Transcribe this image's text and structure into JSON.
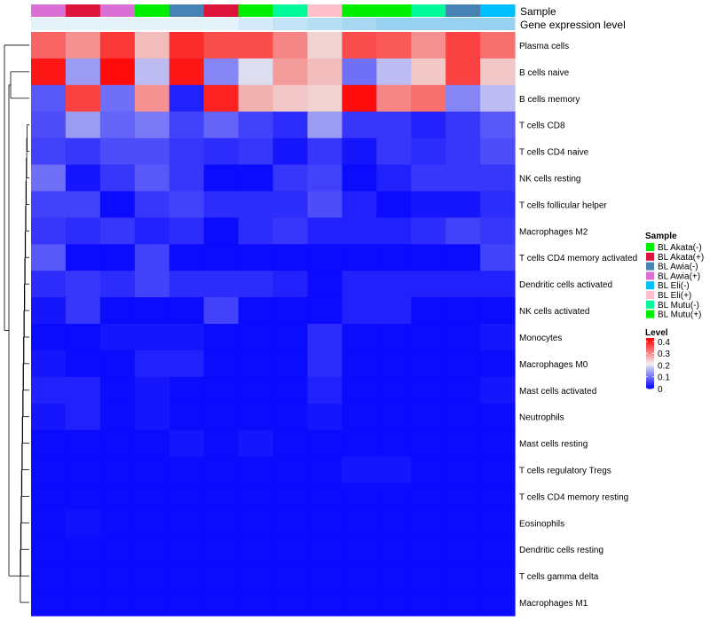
{
  "chart_data": {
    "type": "heatmap",
    "annotation_titles": [
      "Sample",
      "Gene expression level"
    ],
    "sample_colors": [
      "#DA70D6",
      "#DC143C",
      "#DA70D6",
      "#00EE00",
      "#4682B4",
      "#DC143C",
      "#00EE00",
      "#00FA9A",
      "#FFC0CB",
      "#00EE00",
      "#00EE00",
      "#00FA9A",
      "#4682B4",
      "#00BFFF"
    ],
    "gene_expression_colors": [
      "#E6F2FA",
      "#E6F2FA",
      "#E6F2FA",
      "#E6F2FA",
      "#E6F2FA",
      "#E6F2FA",
      "#D4EAF8",
      "#C2E3F6",
      "#B8DEF4",
      "#A8D7F2",
      "#98D0F0",
      "#98D0F0",
      "#98D0F0",
      "#98D0F0"
    ],
    "rows": [
      "Plasma cells",
      "B cells naive",
      "B cells memory",
      "T cells CD8",
      "T cells CD4 naive",
      "NK cells resting",
      "T cells follicular helper",
      "Macrophages M2",
      "T cells CD4 memory activated",
      "Dendritic cells activated",
      "NK cells activated",
      "Monocytes",
      "Macrophages M0",
      "Mast cells activated",
      "Neutrophils",
      "Mast cells resting",
      "T cells regulatory  Tregs",
      "T cells CD4 memory resting",
      "Eosinophils",
      "Dendritic cells resting",
      "T cells gamma delta",
      "Macrophages M1"
    ],
    "values": [
      [
        0.34,
        0.3,
        0.38,
        0.26,
        0.39,
        0.36,
        0.36,
        0.31,
        0.24,
        0.36,
        0.35,
        0.3,
        0.37,
        0.33
      ],
      [
        0.41,
        0.14,
        0.42,
        0.17,
        0.41,
        0.12,
        0.2,
        0.29,
        0.26,
        0.1,
        0.17,
        0.25,
        0.37,
        0.25
      ],
      [
        0.08,
        0.37,
        0.1,
        0.3,
        0.03,
        0.4,
        0.27,
        0.25,
        0.24,
        0.42,
        0.31,
        0.33,
        0.12,
        0.17
      ],
      [
        0.07,
        0.14,
        0.09,
        0.11,
        0.06,
        0.09,
        0.06,
        0.04,
        0.14,
        0.05,
        0.05,
        0.03,
        0.05,
        0.08
      ],
      [
        0.06,
        0.05,
        0.07,
        0.07,
        0.05,
        0.04,
        0.05,
        0.02,
        0.05,
        0.02,
        0.05,
        0.04,
        0.05,
        0.07
      ],
      [
        0.1,
        0.02,
        0.05,
        0.08,
        0.05,
        0.01,
        0.01,
        0.05,
        0.06,
        0.01,
        0.03,
        0.05,
        0.05,
        0.05
      ],
      [
        0.06,
        0.06,
        0.01,
        0.05,
        0.06,
        0.04,
        0.04,
        0.04,
        0.07,
        0.03,
        0.01,
        0.02,
        0.02,
        0.04
      ],
      [
        0.05,
        0.04,
        0.05,
        0.03,
        0.04,
        0.01,
        0.04,
        0.05,
        0.03,
        0.03,
        0.03,
        0.04,
        0.06,
        0.05
      ],
      [
        0.08,
        0.01,
        0.01,
        0.06,
        0.01,
        0.01,
        0.01,
        0.01,
        0.01,
        0.01,
        0.01,
        0.01,
        0.01,
        0.06
      ],
      [
        0.04,
        0.05,
        0.04,
        0.06,
        0.04,
        0.04,
        0.04,
        0.03,
        0.01,
        0.03,
        0.03,
        0.03,
        0.03,
        0.03
      ],
      [
        0.02,
        0.05,
        0.01,
        0.01,
        0.01,
        0.06,
        0.01,
        0.01,
        0.01,
        0.03,
        0.03,
        0.01,
        0.01,
        0.01
      ],
      [
        0.01,
        0.01,
        0.02,
        0.02,
        0.02,
        0.01,
        0.01,
        0.01,
        0.04,
        0.01,
        0.01,
        0.01,
        0.01,
        0.02
      ],
      [
        0.02,
        0.01,
        0.01,
        0.03,
        0.03,
        0.01,
        0.01,
        0.01,
        0.04,
        0.01,
        0.01,
        0.01,
        0.01,
        0.01
      ],
      [
        0.03,
        0.03,
        0.01,
        0.02,
        0.01,
        0.01,
        0.01,
        0.01,
        0.03,
        0.01,
        0.01,
        0.01,
        0.01,
        0.02
      ],
      [
        0.02,
        0.03,
        0.01,
        0.02,
        0.01,
        0.01,
        0.01,
        0.01,
        0.02,
        0.01,
        0.01,
        0.01,
        0.01,
        0.01
      ],
      [
        0.01,
        0.01,
        0.01,
        0.01,
        0.02,
        0.01,
        0.02,
        0.01,
        0.01,
        0.01,
        0.01,
        0.01,
        0.01,
        0.01
      ],
      [
        0.01,
        0.01,
        0.01,
        0.01,
        0.01,
        0.01,
        0.01,
        0.01,
        0.01,
        0.02,
        0.02,
        0.01,
        0.01,
        0.01
      ],
      [
        0.01,
        0.01,
        0.01,
        0.01,
        0.01,
        0.01,
        0.01,
        0.01,
        0.01,
        0.01,
        0.01,
        0.01,
        0.01,
        0.01
      ],
      [
        0.01,
        0.015,
        0.01,
        0.01,
        0.01,
        0.01,
        0.01,
        0.01,
        0.01,
        0.01,
        0.01,
        0.01,
        0.01,
        0.01
      ],
      [
        0.01,
        0.01,
        0.01,
        0.01,
        0.01,
        0.01,
        0.01,
        0.01,
        0.01,
        0.01,
        0.01,
        0.01,
        0.01,
        0.01
      ],
      [
        0.01,
        0.01,
        0.01,
        0.01,
        0.01,
        0.01,
        0.01,
        0.01,
        0.01,
        0.01,
        0.01,
        0.01,
        0.01,
        0.01
      ],
      [
        0.01,
        0.01,
        0.01,
        0.01,
        0.01,
        0.01,
        0.01,
        0.01,
        0.01,
        0.01,
        0.01,
        0.01,
        0.01,
        0.01
      ]
    ],
    "color_scale": {
      "low": "#0000FF",
      "mid": "#EEEEEE",
      "high": "#FF0000",
      "range": [
        0,
        0.43
      ]
    },
    "legend_sample": {
      "title": "Sample",
      "entries": [
        {
          "label": "BL Akata(-)",
          "color": "#00EE00"
        },
        {
          "label": "BL Akata(+)",
          "color": "#DC143C"
        },
        {
          "label": "BL Awia(-)",
          "color": "#4682B4"
        },
        {
          "label": "BL Awia(+)",
          "color": "#DA70D6"
        },
        {
          "label": "BL Eli(-)",
          "color": "#00BFFF"
        },
        {
          "label": "BL Eli(+)",
          "color": "#FFC0CB"
        },
        {
          "label": "BL Mutu(-)",
          "color": "#00FA9A"
        },
        {
          "label": "BL Mutu(+)",
          "color": "#00EE00"
        }
      ]
    },
    "legend_level": {
      "title": "Level",
      "ticks": [
        {
          "value": 0.4,
          "label": "0.4"
        },
        {
          "value": 0.3,
          "label": "0.3"
        },
        {
          "value": 0.2,
          "label": "0.2"
        },
        {
          "value": 0.1,
          "label": "0.1"
        },
        {
          "value": 0,
          "label": "0"
        }
      ]
    }
  }
}
